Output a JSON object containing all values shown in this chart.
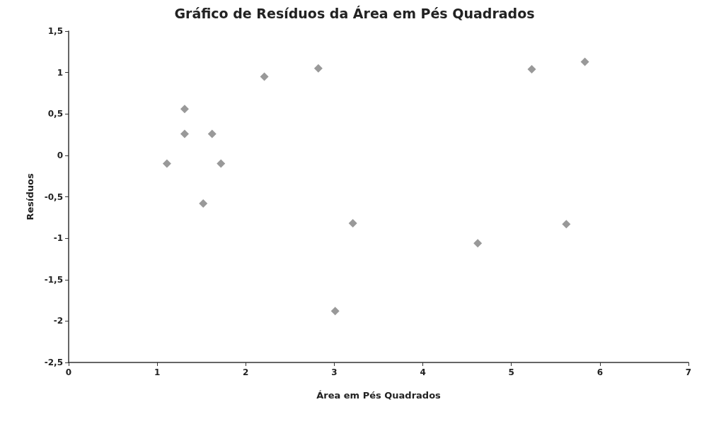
{
  "chart_data": {
    "type": "scatter",
    "title": "Gráfico de Resíduos da Área em Pés Quadrados",
    "xlabel": "Área em Pés Quadrados",
    "ylabel": "Resíduos",
    "x": [
      1.11,
      1.31,
      1.31,
      1.52,
      1.62,
      1.72,
      2.21,
      2.82,
      3.01,
      3.21,
      4.62,
      5.23,
      5.62,
      5.83
    ],
    "series": [
      {
        "color": "#7f7f7f",
        "values": [
          -0.1,
          0.56,
          0.26,
          -0.58,
          0.26,
          -0.1,
          0.95,
          1.05,
          -1.88,
          -0.82,
          -1.06,
          1.04,
          -0.83,
          1.13
        ]
      }
    ],
    "xlim": [
      0,
      7
    ],
    "xticks": [
      0,
      1,
      2,
      3,
      4,
      5,
      6,
      7
    ],
    "ylim": [
      -2.5,
      1.5
    ],
    "yticks": [
      {
        "value": -2.5,
        "label": "-2,5"
      },
      -2,
      {
        "value": -1.5,
        "label": "-1,5"
      },
      -1,
      {
        "value": -0.5,
        "label": "-0,5"
      },
      0,
      {
        "value": 0.5,
        "label": "0,5"
      },
      1,
      {
        "value": 1.5,
        "label": "1,5"
      }
    ],
    "grid": false,
    "marker": "diamond"
  }
}
